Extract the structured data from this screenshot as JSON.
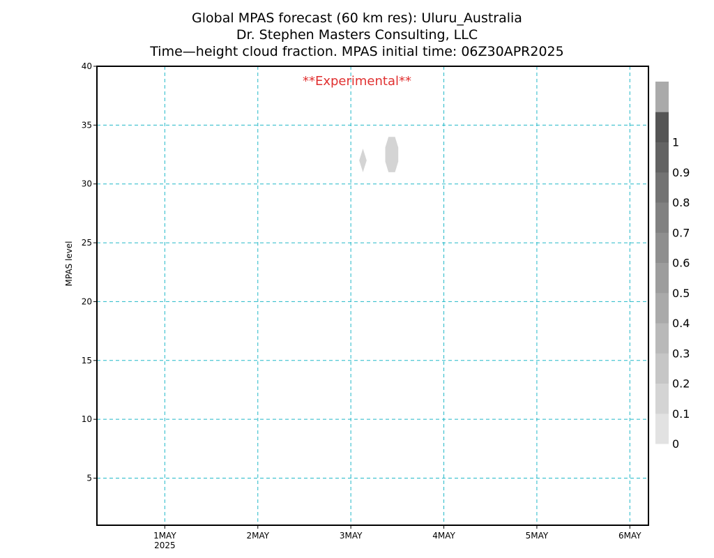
{
  "chart_data": {
    "type": "heatmap",
    "title_lines": [
      "Global MPAS forecast (60 km res): Uluru_Australia",
      "Dr. Stephen Masters Consulting, LLC",
      "Time—height cloud fraction.   MPAS initial time: 06Z30APR2025"
    ],
    "annotation": "**Experimental**",
    "annotation_color": "#e03030",
    "ylabel": "MPAS level",
    "ylim": [
      1,
      40
    ],
    "yticks": [
      5,
      10,
      15,
      20,
      25,
      30,
      35,
      40
    ],
    "xlim": [
      -0.73,
      5.2
    ],
    "xticks": [
      {
        "pos": 0,
        "label": "1MAY",
        "sublabel": "2025"
      },
      {
        "pos": 1,
        "label": "2MAY",
        "sublabel": ""
      },
      {
        "pos": 2,
        "label": "3MAY",
        "sublabel": ""
      },
      {
        "pos": 3,
        "label": "4MAY",
        "sublabel": ""
      },
      {
        "pos": 4,
        "label": "5MAY",
        "sublabel": ""
      },
      {
        "pos": 5,
        "label": "6MAY",
        "sublabel": ""
      }
    ],
    "grid": true,
    "grid_color": "#20b8c8",
    "cloud_features": [
      {
        "x_center": 2.13,
        "x_halfwidth": 0.04,
        "level_bottom": 31,
        "level_top": 33,
        "fraction": 0.1
      },
      {
        "x_center": 2.44,
        "x_halfwidth": 0.07,
        "level_bottom": 31,
        "level_top": 34,
        "fraction": 0.1
      }
    ],
    "colorbar": {
      "labels": [
        "0",
        "0.1",
        "0.2",
        "0.3",
        "0.4",
        "0.5",
        "0.6",
        "0.7",
        "0.8",
        "0.9",
        "1"
      ],
      "colors": [
        "#e2e2e2",
        "#d4d4d4",
        "#c6c6c6",
        "#b9b9b9",
        "#aaaaaa",
        "#9d9d9d",
        "#8f8f8f",
        "#818181",
        "#737373",
        "#636363",
        "#555555",
        "#aaaaaa"
      ]
    }
  }
}
